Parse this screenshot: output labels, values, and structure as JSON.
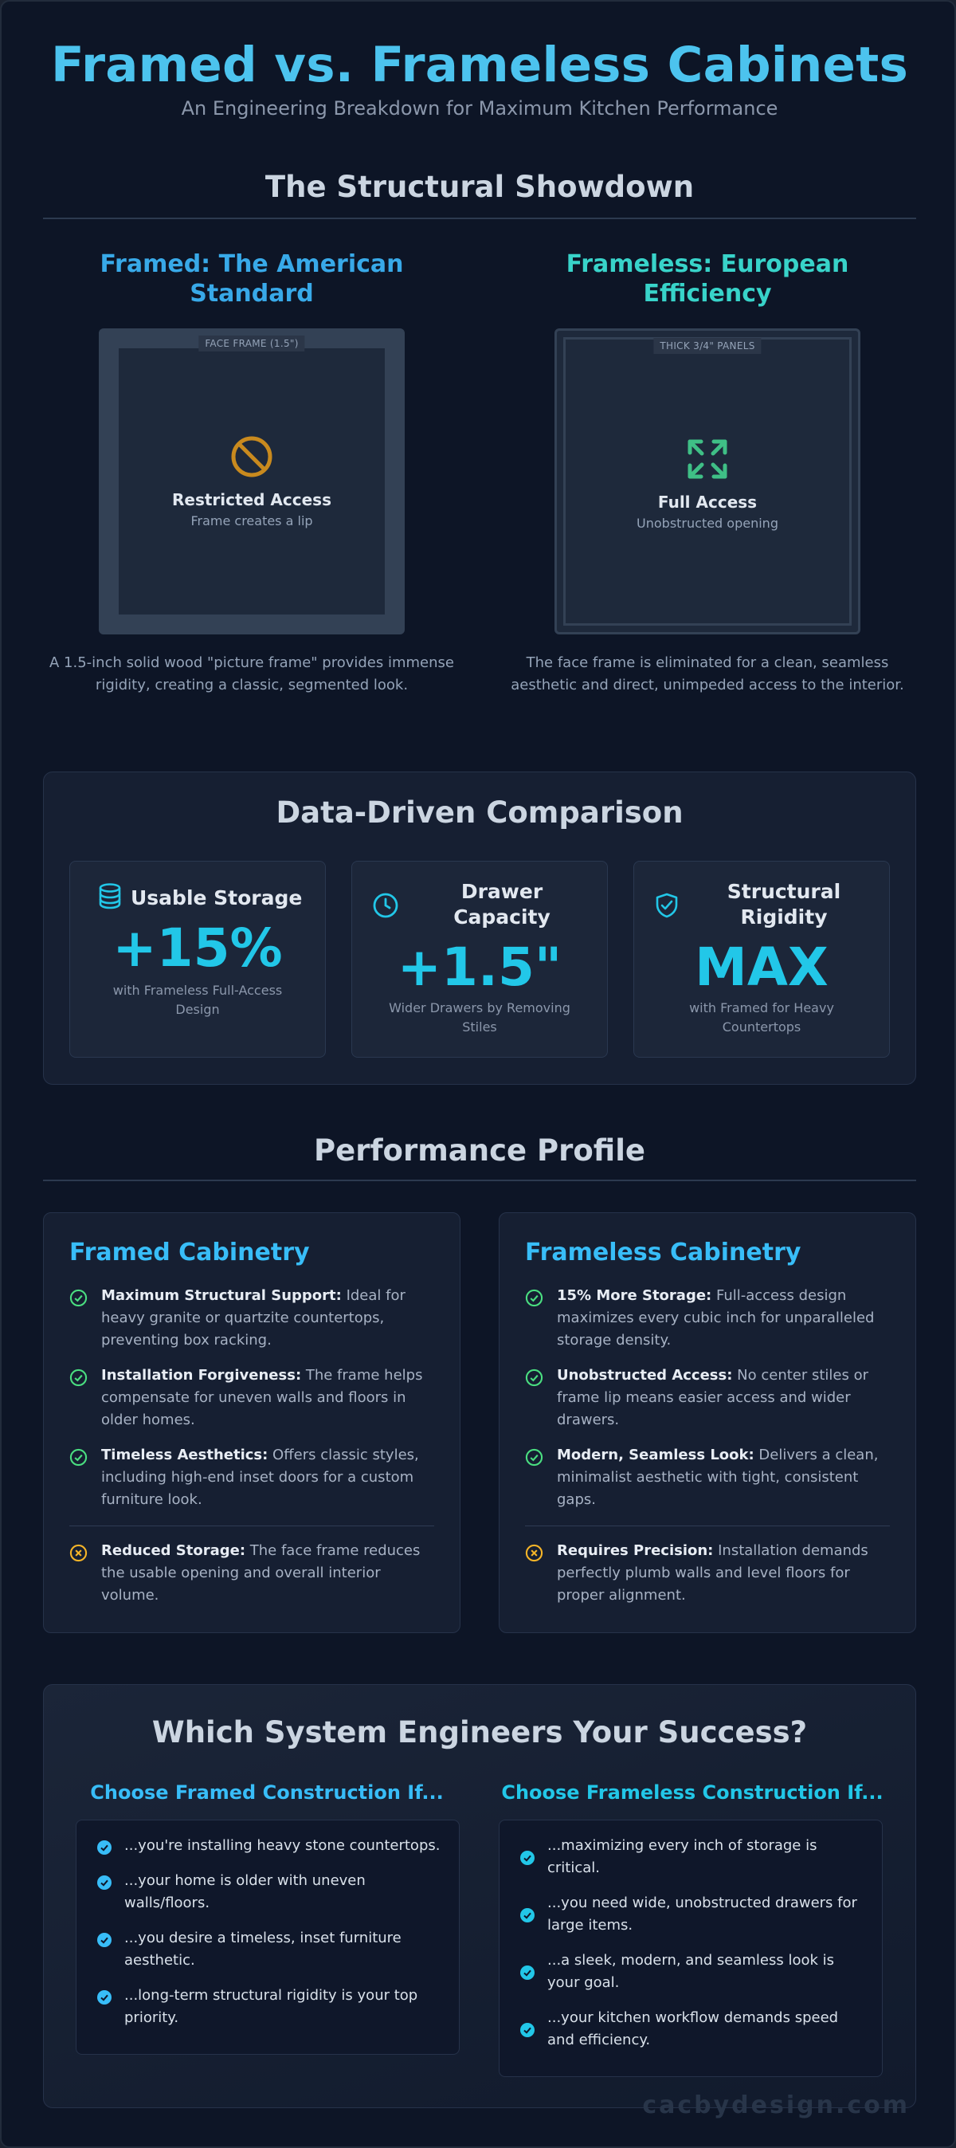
{
  "header": {
    "title": "Framed vs. Frameless Cabinets",
    "subtitle": "An Engineering Breakdown for Maximum Kitchen Performance"
  },
  "showdown": {
    "title": "The Structural Showdown",
    "framed": {
      "title": "Framed: The American Standard",
      "tag": "FACE FRAME (1.5\")",
      "icon": "prohibited-icon",
      "access_title": "Restricted Access",
      "access_sub": "Frame creates a lip",
      "description": "A 1.5-inch solid wood \"picture frame\" provides immense rigidity, creating a classic, segmented look."
    },
    "frameless": {
      "title": "Frameless: European Efficiency",
      "tag": "THICK 3/4\" PANELS",
      "icon": "expand-icon",
      "access_title": "Full Access",
      "access_sub": "Unobstructed opening",
      "description": "The face frame is eliminated for a clean, seamless aesthetic and direct, unimpeded access to the interior."
    }
  },
  "comparison": {
    "title": "Data-Driven Comparison",
    "cards": [
      {
        "icon": "database-icon",
        "label": "Usable Storage",
        "value": "+15%",
        "desc": "with Frameless Full-Access Design"
      },
      {
        "icon": "clock-icon",
        "label": "Drawer Capacity",
        "value": "+1.5\"",
        "desc": "Wider Drawers by Removing Stiles"
      },
      {
        "icon": "shield-check-icon",
        "label": "Structural Rigidity",
        "value": "MAX",
        "desc": "with Framed for Heavy Countertops"
      }
    ]
  },
  "profile": {
    "title": "Performance Profile",
    "framed": {
      "title": "Framed Cabinetry",
      "pros": [
        {
          "bold": "Maximum Structural Support:",
          "text": " Ideal for heavy granite or quartzite countertops, preventing box racking."
        },
        {
          "bold": "Installation Forgiveness:",
          "text": " The frame helps compensate for uneven walls and floors in older homes."
        },
        {
          "bold": "Timeless Aesthetics:",
          "text": " Offers classic styles, including high-end inset doors for a custom furniture look."
        }
      ],
      "con": {
        "bold": "Reduced Storage:",
        "text": " The face frame reduces the usable opening and overall interior volume."
      }
    },
    "frameless": {
      "title": "Frameless Cabinetry",
      "pros": [
        {
          "bold": "15% More Storage:",
          "text": " Full-access design maximizes every cubic inch for unparalleled storage density."
        },
        {
          "bold": "Unobstructed Access:",
          "text": " No center stiles or frame lip means easier access and wider drawers."
        },
        {
          "bold": "Modern, Seamless Look:",
          "text": " Delivers a clean, minimalist aesthetic with tight, consistent gaps."
        }
      ],
      "con": {
        "bold": "Requires Precision:",
        "text": " Installation demands perfectly plumb walls and level floors for proper alignment."
      }
    }
  },
  "choose": {
    "title": "Which System Engineers Your Success?",
    "framed": {
      "title": "Choose Framed Construction If...",
      "items": [
        "...you're installing heavy stone countertops.",
        "...your home is older with uneven walls/floors.",
        "...you desire a timeless, inset furniture aesthetic.",
        "...long-term structural rigidity is your top priority."
      ]
    },
    "frameless": {
      "title": "Choose Frameless Construction If...",
      "items": [
        "...maximizing every inch of storage is critical.",
        "...you need wide, unobstructed drawers for large items.",
        "...a sleek, modern, and seamless look is your goal.",
        "...your kitchen workflow demands speed and efficiency."
      ]
    }
  },
  "footer": {
    "watermark": "cacbydesign.com"
  },
  "colors": {
    "title": "#4cc3ee",
    "framed_accent": "#38a9e8",
    "frameless_accent": "#38d3c9",
    "check_green": "#4ade80",
    "warning_amber": "#f5b428",
    "stat_value": "#22c7e8"
  }
}
